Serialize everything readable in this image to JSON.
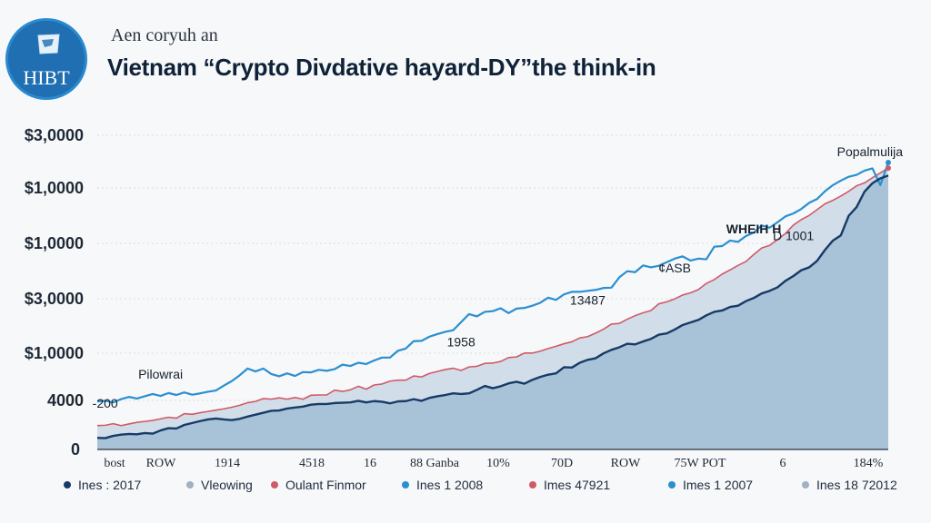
{
  "logo": {
    "text": "HIBT",
    "emblem": "flag-icon",
    "color": "#1f6fb2"
  },
  "header": {
    "subtitle": "Aen corуuh an",
    "title": "Vietnam “Crypto Divdative hayard-DY”the think-in"
  },
  "chart_data": {
    "type": "area",
    "title": "Vietnam “Crypto Divdative hayard-DY”the think-in",
    "y_tick_labels": [
      "0",
      "4000",
      "$1,0000",
      "$3,0000",
      "$1,0000",
      "$1,0000",
      "$3,0000"
    ],
    "x_tick_labels": [
      "bost",
      "ROW",
      "1914",
      "4518",
      "16",
      "88 Ganba",
      "10%",
      "70D",
      "ROW",
      "75W POT",
      "6",
      "184%"
    ],
    "ylim": [
      0,
      100
    ],
    "grid": true,
    "legend_position": "bottom",
    "x": [
      0,
      1,
      2,
      3,
      4,
      5,
      6,
      7,
      8,
      9,
      10,
      11,
      12,
      13,
      14,
      15,
      16,
      17,
      18,
      19,
      20,
      21,
      22,
      23,
      24,
      25,
      26,
      27,
      28,
      29,
      30,
      31,
      32,
      33,
      34,
      35,
      36,
      37,
      38,
      39,
      40,
      41,
      42,
      43,
      44,
      45,
      46,
      47,
      48,
      49,
      50,
      51,
      52,
      53,
      54,
      55,
      56,
      57,
      58,
      59,
      60,
      61,
      62,
      63,
      64,
      65,
      66,
      67,
      68,
      69,
      70,
      71,
      72,
      73,
      74,
      75,
      76,
      77,
      78,
      79,
      80,
      81,
      82,
      83,
      84,
      85,
      86,
      87,
      88,
      89,
      90,
      91,
      92,
      93,
      94,
      95,
      96,
      97,
      98,
      99,
      100
    ],
    "series": [
      {
        "name": "Ines 1 2008",
        "color": "#2a8fd0",
        "style": "line",
        "values": [
          14.9,
          15.1,
          14.6,
          15.6,
          16.3,
          15.8,
          16.5,
          17.2,
          16.6,
          17.5,
          16.9,
          17.7,
          17.0,
          17.4,
          17.9,
          18.3,
          19.8,
          21.2,
          23.0,
          25.1,
          24.2,
          25.1,
          23.4,
          22.7,
          23.6,
          22.8,
          24.0,
          23.9,
          24.7,
          24.4,
          24.9,
          26.3,
          25.9,
          26.9,
          26.5,
          27.6,
          28.5,
          28.5,
          30.6,
          31.3,
          33.6,
          33.7,
          35.0,
          35.8,
          36.5,
          37.0,
          39.5,
          42.0,
          41.3,
          42.7,
          42.9,
          43.8,
          42.3,
          43.7,
          43.9,
          44.6,
          45.5,
          47.1,
          46.4,
          48.1,
          48.9,
          48.9,
          49.2,
          49.5,
          50.1,
          50.2,
          53.4,
          55.3,
          55.0,
          57.1,
          56.5,
          57.0,
          58.1,
          59.2,
          59.9,
          58.6,
          59.2,
          59.0,
          62.9,
          63.1,
          64.8,
          64.4,
          66.2,
          67.3,
          69.5,
          68.8,
          70.5,
          72.3,
          73.2,
          74.6,
          76.5,
          77.7,
          80.1,
          82.0,
          83.4,
          84.6,
          85.2,
          86.5,
          87.2,
          82.0,
          89.0
        ]
      },
      {
        "name": "Oulant Finmor",
        "color": "#d05a66",
        "style": "line",
        "values": [
          7.4,
          7.5,
          8.0,
          7.4,
          7.9,
          8.4,
          8.7,
          9.0,
          9.5,
          10.0,
          9.7,
          11.1,
          10.9,
          11.4,
          11.8,
          12.2,
          12.6,
          13.1,
          13.7,
          14.5,
          14.9,
          15.8,
          15.6,
          16.0,
          15.6,
          16.1,
          15.6,
          16.8,
          16.9,
          16.9,
          18.4,
          18.0,
          18.5,
          19.6,
          18.7,
          20.0,
          20.3,
          21.2,
          21.5,
          21.5,
          22.8,
          22.5,
          23.6,
          24.2,
          24.8,
          25.2,
          24.5,
          25.6,
          25.8,
          26.7,
          26.8,
          27.3,
          28.5,
          28.7,
          29.9,
          29.9,
          30.5,
          31.3,
          32.0,
          32.8,
          33.4,
          34.6,
          35.0,
          36.1,
          37.3,
          38.9,
          39.1,
          40.4,
          41.5,
          42.4,
          43.1,
          45.2,
          45.8,
          46.7,
          47.9,
          48.6,
          49.6,
          51.5,
          52.7,
          54.4,
          55.7,
          57.1,
          58.3,
          60.5,
          62.5,
          63.3,
          65.1,
          67.0,
          69.6,
          71.3,
          72.6,
          74.4,
          76.2,
          77.3,
          78.6,
          80.1,
          81.8,
          82.7,
          84.3,
          85.8,
          87.3
        ]
      },
      {
        "name": "Ines : 2017",
        "color": "#173a66",
        "style": "line",
        "values": [
          3.6,
          3.5,
          4.2,
          4.6,
          4.8,
          4.7,
          5.1,
          4.9,
          5.9,
          6.6,
          6.5,
          7.6,
          8.2,
          8.8,
          9.3,
          9.6,
          9.3,
          9.1,
          9.5,
          10.2,
          10.8,
          11.4,
          12.0,
          12.1,
          12.7,
          13.0,
          13.3,
          13.9,
          14.1,
          14.1,
          14.4,
          14.5,
          14.6,
          15.1,
          14.6,
          15.0,
          14.8,
          14.3,
          14.9,
          15.0,
          15.6,
          15.1,
          16.0,
          16.5,
          16.9,
          17.4,
          17.2,
          17.4,
          18.5,
          19.7,
          19.0,
          19.6,
          20.5,
          21.0,
          20.4,
          21.6,
          22.5,
          23.2,
          23.6,
          25.5,
          25.4,
          26.9,
          27.8,
          28.3,
          29.8,
          30.9,
          31.7,
          32.8,
          32.6,
          33.5,
          34.3,
          35.6,
          36.0,
          37.2,
          38.6,
          39.4,
          40.2,
          41.6,
          42.7,
          43.1,
          44.2,
          44.6,
          46.0,
          47.0,
          48.4,
          49.2,
          50.3,
          52.3,
          53.8,
          55.6,
          56.5,
          58.5,
          61.9,
          64.8,
          66.4,
          72.5,
          75.2,
          80.0,
          82.6,
          84.1,
          85.0
        ]
      }
    ],
    "area_fill": {
      "name": "Vleowing",
      "color": "#a3c0d6"
    },
    "annotations": [
      {
        "text": "Pilowrai",
        "x": 8,
        "y": 22
      },
      {
        "text": "-200",
        "x": 1,
        "y": 13
      },
      {
        "text": "1958",
        "x": 46,
        "y": 32
      },
      {
        "text": "13487",
        "x": 62,
        "y": 45
      },
      {
        "text": "¢ASB",
        "x": 73,
        "y": 55
      },
      {
        "text": "WHEIH H",
        "x": 83,
        "y": 67
      },
      {
        "text": "D 1001",
        "x": 88,
        "y": 65
      },
      {
        "text": "Popalmulija",
        "x": 97,
        "y": 91
      }
    ]
  },
  "legend": [
    {
      "label": "Ines : 2017",
      "color": "#173a66"
    },
    {
      "label": "Vleowing",
      "color": "#9fb1c2"
    },
    {
      "label": "Oulant Finmor",
      "color": "#d05a66"
    },
    {
      "label": "Ines 1 2008",
      "color": "#2a8fd0"
    },
    {
      "label": "Imes 47921",
      "color": "#d05a66"
    },
    {
      "label": "Imes 1 2007",
      "color": "#2a8fd0"
    },
    {
      "label": "Ines 18 72012",
      "color": "#9fb1c2"
    }
  ]
}
